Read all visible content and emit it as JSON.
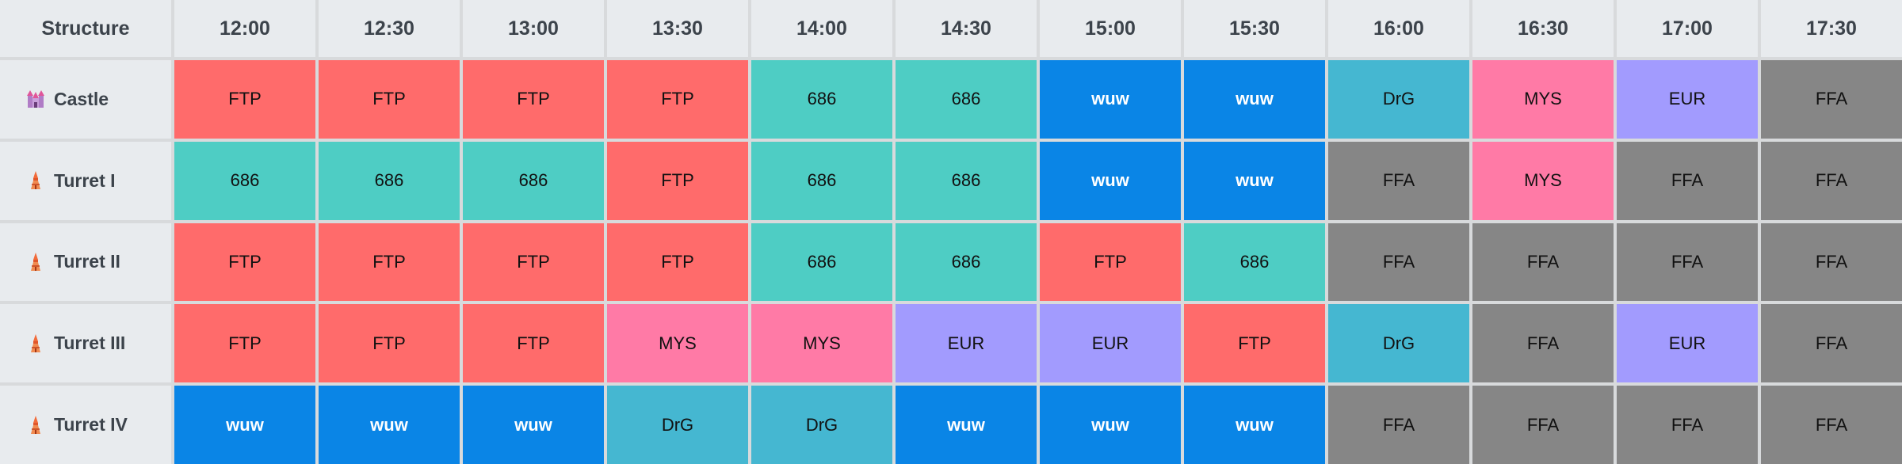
{
  "header": {
    "structure_label": "Structure",
    "times": [
      "12:00",
      "12:30",
      "13:00",
      "13:30",
      "14:00",
      "14:30",
      "15:00",
      "15:30",
      "16:00",
      "16:30",
      "17:00",
      "17:30"
    ]
  },
  "rows": [
    {
      "label": "Castle",
      "icon": "castle-icon",
      "cells": [
        "FTP",
        "FTP",
        "FTP",
        "FTP",
        "686",
        "686",
        "wuw",
        "wuw",
        "DrG",
        "MYS",
        "EUR",
        "FFA"
      ]
    },
    {
      "label": "Turret I",
      "icon": "turret-icon",
      "cells": [
        "686",
        "686",
        "686",
        "FTP",
        "686",
        "686",
        "wuw",
        "wuw",
        "FFA",
        "MYS",
        "FFA",
        "FFA"
      ]
    },
    {
      "label": "Turret II",
      "icon": "turret-icon",
      "cells": [
        "FTP",
        "FTP",
        "FTP",
        "FTP",
        "686",
        "686",
        "FTP",
        "686",
        "FFA",
        "FFA",
        "FFA",
        "FFA"
      ]
    },
    {
      "label": "Turret III",
      "icon": "turret-icon",
      "cells": [
        "FTP",
        "FTP",
        "FTP",
        "MYS",
        "MYS",
        "EUR",
        "EUR",
        "FTP",
        "DrG",
        "FFA",
        "EUR",
        "FFA"
      ]
    },
    {
      "label": "Turret IV",
      "icon": "turret-icon",
      "cells": [
        "wuw",
        "wuw",
        "wuw",
        "DrG",
        "DrG",
        "wuw",
        "wuw",
        "wuw",
        "FFA",
        "FFA",
        "FFA",
        "FFA"
      ]
    }
  ],
  "colors": {
    "FTP": "#ff6b6b",
    "686": "#4ecdc4",
    "wuw": "#0a85e6",
    "DrG": "#45b7d1",
    "MYS": "#ff7aa6",
    "EUR": "#a29bfe",
    "FFA": "#868686"
  }
}
